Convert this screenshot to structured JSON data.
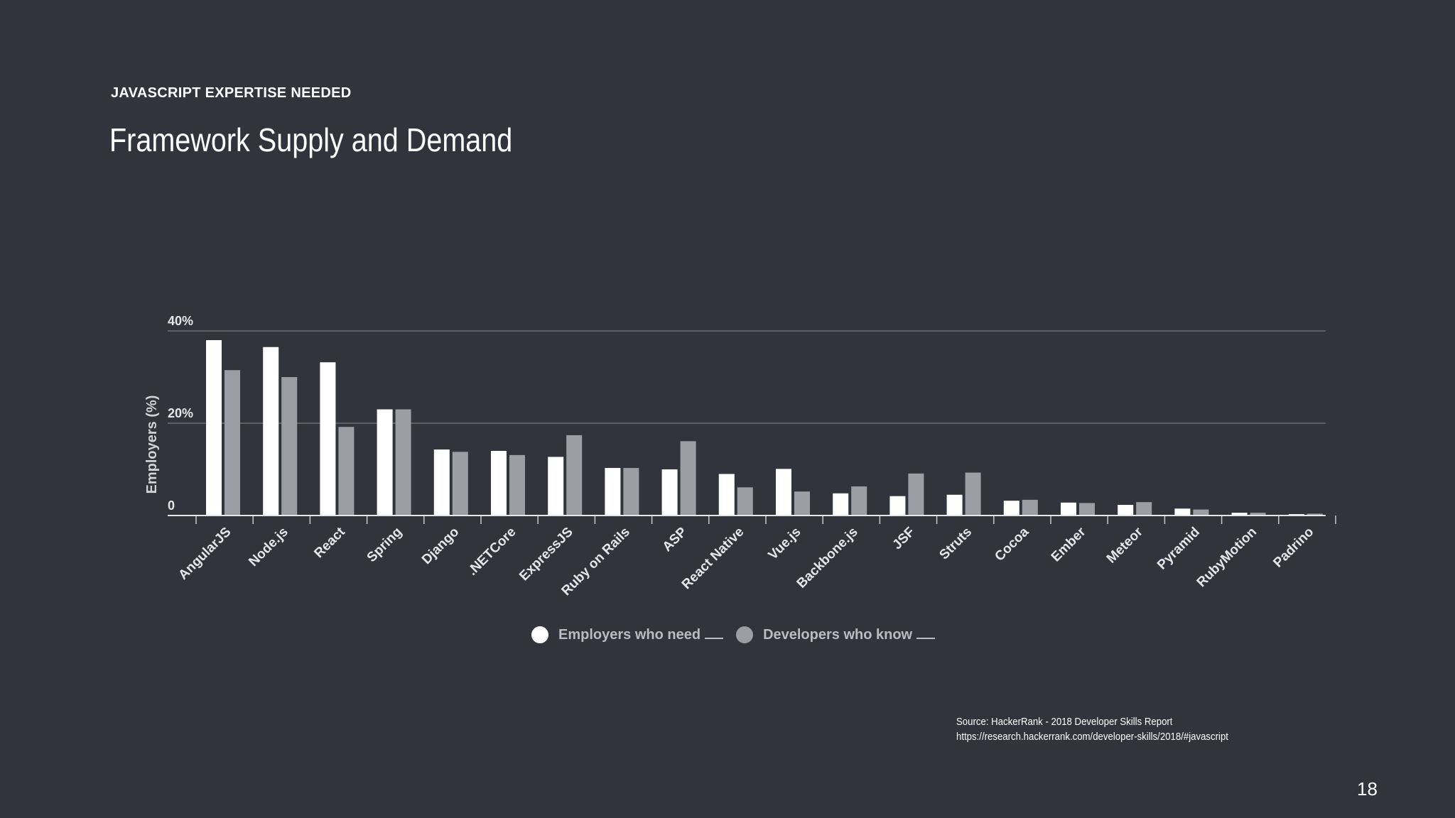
{
  "header": {
    "eyebrow": "JAVASCRIPT EXPERTISE NEEDED",
    "title": "Framework Supply and Demand"
  },
  "chart_data": {
    "type": "bar",
    "title": "",
    "xlabel": "",
    "ylabel": "Employers (%)",
    "ylim": [
      0,
      40
    ],
    "yticks": [
      0,
      20,
      40
    ],
    "ytick_labels": [
      "0",
      "20%",
      "40%"
    ],
    "grid": true,
    "legend_position": "bottom",
    "categories": [
      "AngularJS",
      "Node.js",
      "React",
      "Spring",
      "Django",
      ".NETCore",
      "ExpressJS",
      "Ruby on Rails",
      "ASP",
      "React Native",
      "Vue.js",
      "Backbone.js",
      "JSF",
      "Struts",
      "Cocoa",
      "Ember",
      "Meteor",
      "Pyramid",
      "RubyMotion",
      "Padrino"
    ],
    "series": [
      {
        "name": "Employers who need ___",
        "color": "#ffffff",
        "values": [
          38,
          36.5,
          33.2,
          23,
          14.3,
          14,
          12.7,
          10.3,
          10,
          9,
          10.1,
          4.8,
          4.2,
          4.5,
          3.2,
          2.8,
          2.3,
          1.5,
          0.6,
          0.3
        ]
      },
      {
        "name": "Developers who know ___",
        "color": "#9a9fa6",
        "values": [
          31.5,
          30,
          19.2,
          23,
          13.8,
          13.1,
          17.4,
          10.3,
          16.1,
          6.1,
          5.2,
          6.3,
          9.1,
          9.3,
          3.4,
          2.7,
          2.9,
          1.3,
          0.6,
          0.4
        ]
      }
    ]
  },
  "legend": {
    "employers_label": "Employers who need",
    "developers_label": "Developers who know",
    "employers_color": "#ffffff",
    "developers_color": "#9a9fa6"
  },
  "source": {
    "line1": "Source: HackerRank - 2018 Developer Skills Report",
    "line2": "https://research.hackerrank.com/developer-skills/2018/#javascript"
  },
  "page_number": "18"
}
